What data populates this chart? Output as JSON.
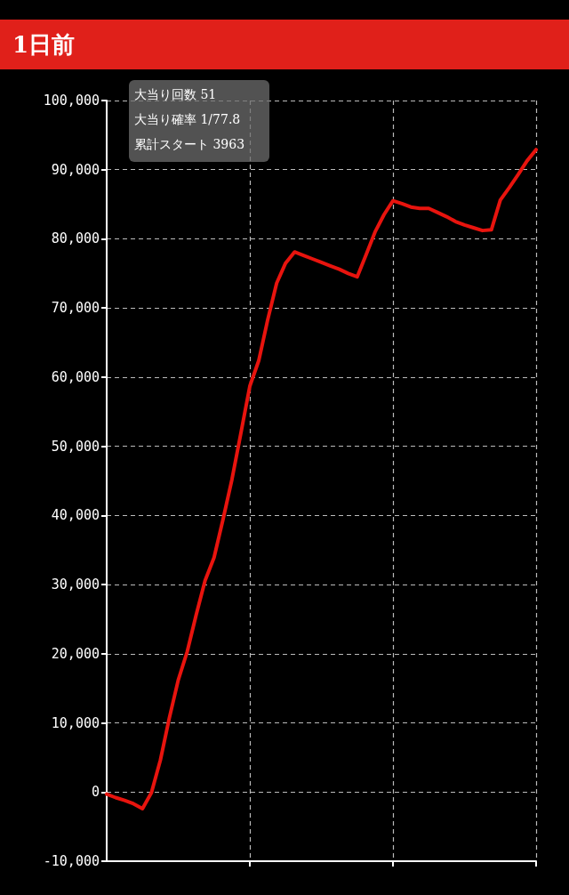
{
  "chart_data": {
    "type": "line",
    "title": "1日前",
    "annotations": [
      "大当り回数 51",
      "大当り確率 1/77.8",
      "累計スタート 3963"
    ],
    "categories": [
      null,
      null,
      null,
      null,
      null,
      null,
      null,
      null,
      null,
      null,
      null,
      null,
      null,
      null,
      null,
      null,
      null,
      null,
      null,
      null,
      null,
      null,
      null,
      null,
      null,
      null,
      null,
      null,
      null,
      null,
      null,
      null,
      null,
      null,
      null,
      null,
      null,
      null,
      null,
      null,
      null,
      null,
      null,
      null,
      null,
      null,
      null,
      null,
      null
    ],
    "series": [
      {
        "color": "#e8140e",
        "values": [
          -300,
          -800,
          -1200,
          -1700,
          -2400,
          -100,
          4600,
          10700,
          16200,
          20300,
          25600,
          30600,
          33900,
          39400,
          45200,
          51900,
          58700,
          62400,
          68300,
          73600,
          76500,
          78100,
          77600,
          77100,
          76600,
          76100,
          75600,
          75000,
          74500,
          77700,
          81000,
          83500,
          85500,
          85100,
          84600,
          84400,
          84400,
          83800,
          83200,
          82500,
          82000,
          81600,
          81200,
          81300,
          85600,
          87400,
          89300,
          91300,
          92900
        ]
      }
    ],
    "ylim": [
      -10000,
      100000
    ],
    "yticks": [
      {
        "value": -10000,
        "label": "-10,000"
      },
      0,
      {
        "value": 10000,
        "label": "10,000"
      },
      {
        "value": 20000,
        "label": "20,000"
      },
      {
        "value": 30000,
        "label": "30,000"
      },
      {
        "value": 40000,
        "label": "40,000"
      },
      {
        "value": 50000,
        "label": "50,000"
      },
      {
        "value": 60000,
        "label": "60,000"
      },
      {
        "value": 70000,
        "label": "70,000"
      },
      {
        "value": 80000,
        "label": "80,000"
      },
      {
        "value": 90000,
        "label": "90,000"
      },
      {
        "value": 100000,
        "label": "100,000"
      }
    ],
    "tick_labels": "y",
    "grid": true,
    "marker": "none",
    "line_style": "solid"
  }
}
